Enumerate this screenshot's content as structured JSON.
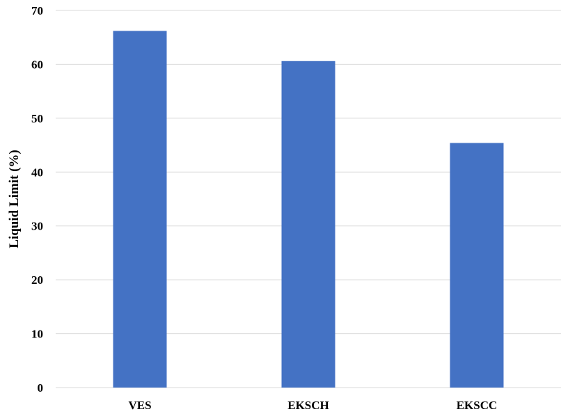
{
  "chart_data": {
    "type": "bar",
    "categories": [
      "VES",
      "EKSCH",
      "EKSCC"
    ],
    "values": [
      66.2,
      60.6,
      45.4
    ],
    "title": "",
    "xlabel": "",
    "ylabel": "Liquid Limit (%)",
    "ylim": [
      0,
      70
    ],
    "yticks": [
      0,
      10,
      20,
      30,
      40,
      50,
      60,
      70
    ],
    "grid": true,
    "legend": "none",
    "colors": {
      "bar": "#4472C4",
      "grid": "#D9D9D9",
      "axis": "#D9D9D9",
      "text": "#000000"
    }
  }
}
